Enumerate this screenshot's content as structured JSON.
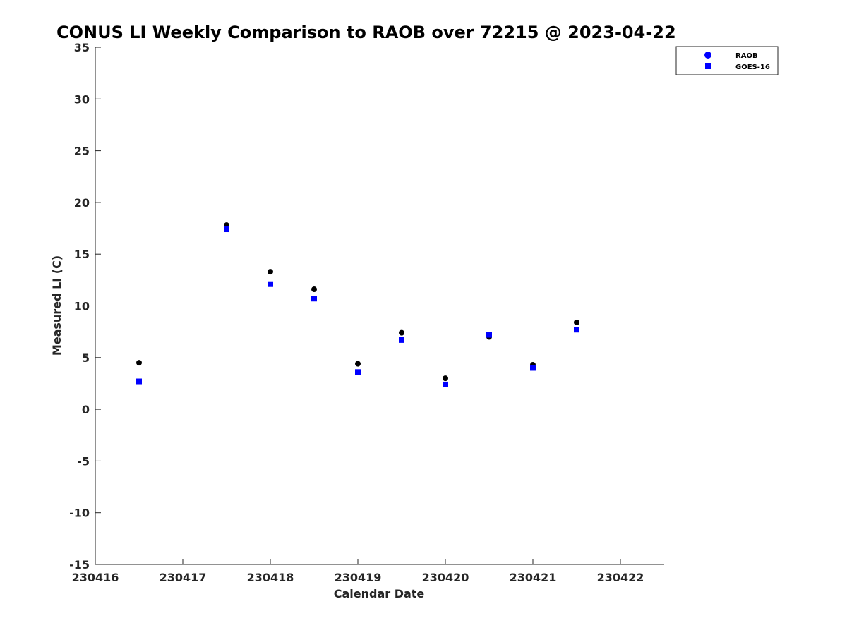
{
  "chart_data": {
    "type": "scatter",
    "title": "CONUS LI Weekly Comparison to RAOB over 72215 @ 2023-04-22",
    "xlabel": "Calendar Date",
    "ylabel": "Measured LI (C)",
    "xlim": [
      230416,
      230422.5
    ],
    "ylim": [
      -15,
      35
    ],
    "xticks": [
      230416,
      230417,
      230418,
      230419,
      230420,
      230421,
      230422
    ],
    "xtick_labels": [
      "230416",
      "230417",
      "230418",
      "230419",
      "230420",
      "230421",
      "230422"
    ],
    "yticks": [
      -15,
      -10,
      -5,
      0,
      5,
      10,
      15,
      20,
      25,
      30,
      35
    ],
    "ytick_labels": [
      "-15",
      "-10",
      "-5",
      "0",
      "5",
      "10",
      "15",
      "20",
      "25",
      "30",
      "35"
    ],
    "grid": false,
    "legend_position": "top-right",
    "series": [
      {
        "name": "RAOB",
        "marker": "circle",
        "color": "#000000",
        "legend_color": "#0000ff",
        "x": [
          230416.5,
          230417.5,
          230418.0,
          230418.5,
          230419.0,
          230419.5,
          230420.0,
          230420.5,
          230421.0,
          230421.5
        ],
        "y": [
          4.5,
          17.8,
          13.3,
          11.6,
          4.4,
          7.4,
          3.0,
          7.0,
          4.3,
          8.4
        ]
      },
      {
        "name": "GOES-16",
        "marker": "square",
        "color": "#0000ff",
        "legend_color": "#0000ff",
        "x": [
          230416.5,
          230417.5,
          230418.0,
          230418.5,
          230419.0,
          230419.5,
          230420.0,
          230420.5,
          230421.0,
          230421.5
        ],
        "y": [
          2.7,
          17.4,
          12.1,
          10.7,
          3.6,
          6.7,
          2.4,
          7.2,
          4.0,
          7.7
        ]
      }
    ]
  }
}
